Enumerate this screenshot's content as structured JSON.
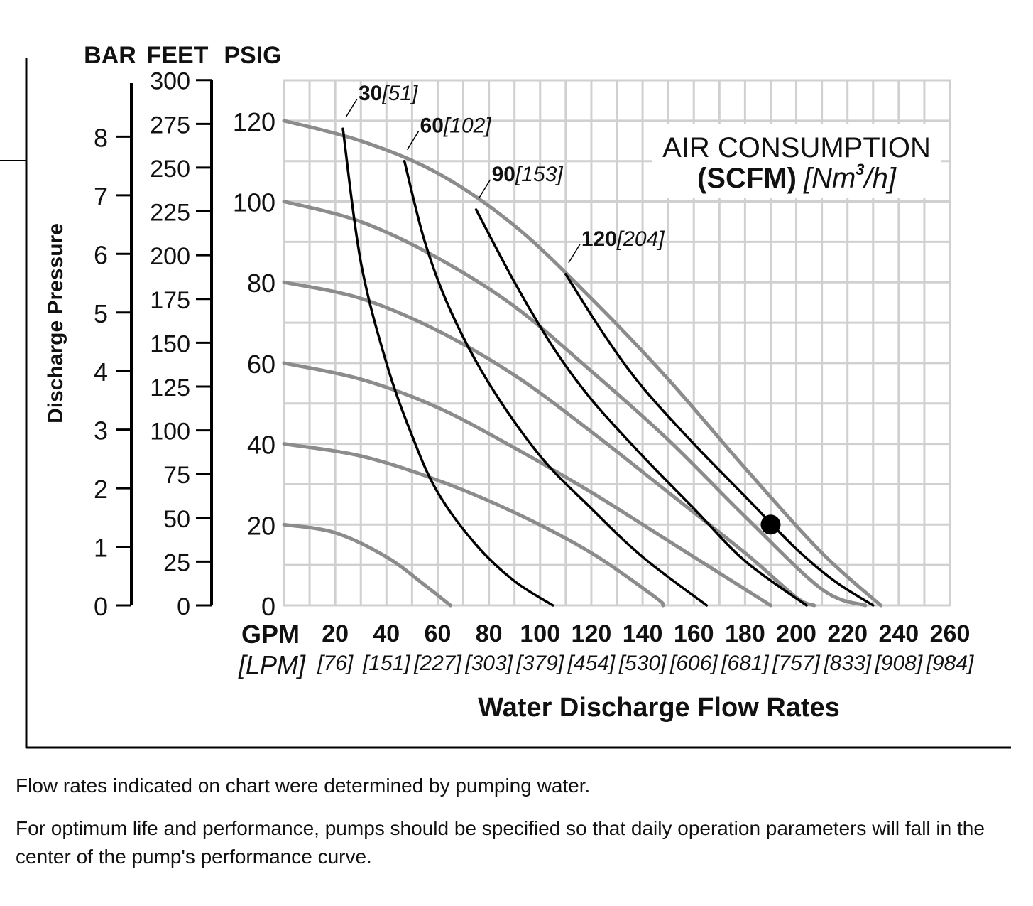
{
  "chart_data": {
    "type": "line",
    "xlabel": "Water Discharge Flow Rates",
    "x_unit_primary": "GPM",
    "x_unit_secondary": "[LPM]",
    "x_ticks": [
      20,
      40,
      60,
      80,
      100,
      120,
      140,
      160,
      180,
      200,
      220,
      240,
      260
    ],
    "x_ticks_secondary": [
      "[76]",
      "[151]",
      "[227]",
      "[303]",
      "[379]",
      "[454]",
      "[530]",
      "[606]",
      "[681]",
      "[757]",
      "[833]",
      "[908]",
      "[984]"
    ],
    "xlim": [
      0,
      260
    ],
    "ylabel": "Discharge Pressure",
    "y_units": [
      "BAR",
      "FEET",
      "PSIG"
    ],
    "ylim": [
      0,
      130
    ],
    "psig_ticks": [
      0,
      20,
      40,
      60,
      80,
      100,
      120
    ],
    "feet_ticks": [
      0,
      25,
      50,
      75,
      100,
      125,
      150,
      175,
      200,
      225,
      250,
      275,
      300
    ],
    "bar_ticks": [
      0,
      1,
      2,
      3,
      4,
      5,
      6,
      7,
      8
    ],
    "grid": true,
    "legend_title_line1": "AIR CONSUMPTION",
    "legend_title_bold": "(SCFM)",
    "legend_title_italic_pre": "[Nm",
    "legend_title_sup": "3",
    "legend_title_italic_post": "/h]",
    "pressure_curves": [
      {
        "start_psig": 120,
        "points": [
          [
            0,
            120
          ],
          [
            30,
            115
          ],
          [
            60,
            107
          ],
          [
            90,
            94
          ],
          [
            120,
            76
          ],
          [
            150,
            56
          ],
          [
            180,
            34
          ],
          [
            210,
            13
          ],
          [
            233,
            0
          ]
        ]
      },
      {
        "start_psig": 100,
        "points": [
          [
            0,
            100
          ],
          [
            30,
            95
          ],
          [
            60,
            86
          ],
          [
            90,
            74
          ],
          [
            120,
            58
          ],
          [
            150,
            41
          ],
          [
            180,
            22
          ],
          [
            210,
            4
          ],
          [
            227,
            0
          ]
        ]
      },
      {
        "start_psig": 80,
        "points": [
          [
            0,
            80
          ],
          [
            30,
            76
          ],
          [
            60,
            68
          ],
          [
            90,
            57
          ],
          [
            120,
            43
          ],
          [
            150,
            28
          ],
          [
            180,
            13
          ],
          [
            200,
            2
          ],
          [
            207,
            0
          ]
        ]
      },
      {
        "start_psig": 60,
        "points": [
          [
            0,
            60
          ],
          [
            30,
            56
          ],
          [
            60,
            49
          ],
          [
            90,
            39
          ],
          [
            120,
            28
          ],
          [
            150,
            16
          ],
          [
            180,
            4
          ],
          [
            190,
            0
          ]
        ]
      },
      {
        "start_psig": 40,
        "points": [
          [
            0,
            40
          ],
          [
            30,
            37
          ],
          [
            60,
            31
          ],
          [
            90,
            23
          ],
          [
            120,
            13
          ],
          [
            145,
            2
          ],
          [
            148,
            0
          ]
        ]
      },
      {
        "start_psig": 20,
        "points": [
          [
            0,
            20
          ],
          [
            20,
            18
          ],
          [
            40,
            12
          ],
          [
            55,
            5
          ],
          [
            65,
            0
          ]
        ]
      }
    ],
    "air_consumption_curves": [
      {
        "label_bold": "30",
        "label_italic": "[51]",
        "points": [
          [
            23,
            118
          ],
          [
            30,
            85
          ],
          [
            40,
            60
          ],
          [
            50,
            42
          ],
          [
            60,
            28
          ],
          [
            75,
            15
          ],
          [
            90,
            6
          ],
          [
            105,
            0
          ]
        ]
      },
      {
        "label_bold": "60",
        "label_italic": "[102]",
        "points": [
          [
            47,
            110
          ],
          [
            55,
            90
          ],
          [
            65,
            73
          ],
          [
            80,
            55
          ],
          [
            100,
            37
          ],
          [
            120,
            24
          ],
          [
            140,
            12
          ],
          [
            165,
            0
          ]
        ]
      },
      {
        "label_bold": "90",
        "label_italic": "[153]",
        "points": [
          [
            75,
            98
          ],
          [
            90,
            80
          ],
          [
            105,
            64
          ],
          [
            120,
            51
          ],
          [
            140,
            37
          ],
          [
            160,
            24
          ],
          [
            180,
            11
          ],
          [
            204,
            0
          ]
        ]
      },
      {
        "label_bold": "120",
        "label_italic": "[204]",
        "points": [
          [
            110,
            82
          ],
          [
            125,
            67
          ],
          [
            140,
            54
          ],
          [
            160,
            40
          ],
          [
            180,
            27
          ],
          [
            200,
            14
          ],
          [
            215,
            6
          ],
          [
            230,
            0
          ]
        ]
      }
    ],
    "marker_point": [
      190,
      20
    ]
  },
  "notes": {
    "line1": "Flow rates indicated on chart were determined by pumping water.",
    "line2": "For optimum life and performance, pumps should be specified so that daily operation parameters will fall in the center of the pump's performance curve."
  }
}
